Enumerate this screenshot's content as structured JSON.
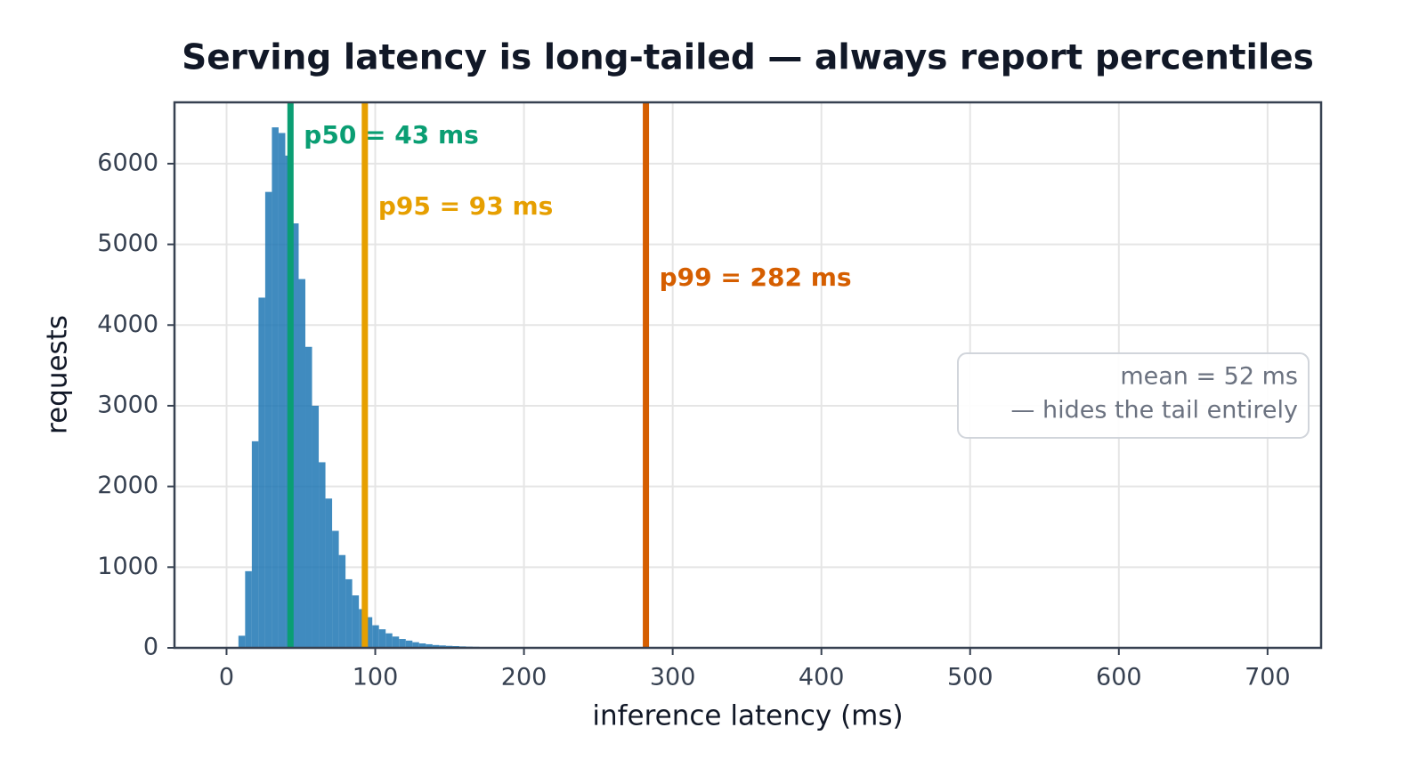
{
  "chart_data": {
    "type": "histogram",
    "title": "Serving latency is long-tailed — always report percentiles",
    "xlabel": "inference latency (ms)",
    "ylabel": "requests",
    "bins": [
      8,
      12.5,
      17,
      21.5,
      26,
      30.5,
      35,
      39.5,
      44,
      48.5,
      53,
      57.5,
      62,
      66.5,
      71,
      75.5,
      80,
      84.5,
      89,
      93.5,
      98,
      102.5,
      107,
      111.5,
      116,
      120.5,
      125,
      129.5,
      134,
      138.5,
      143,
      147.5,
      152,
      156.5,
      161,
      165.5,
      170,
      174.5,
      179,
      183.5,
      188,
      192.5,
      197,
      201.5,
      206,
      210.5,
      215,
      219.5,
      224,
      228.5,
      233,
      237.5,
      242,
      246.5,
      251
    ],
    "values": [
      150,
      950,
      2560,
      4340,
      5650,
      6450,
      6380,
      6100,
      5260,
      4570,
      3730,
      3000,
      2300,
      1850,
      1450,
      1150,
      850,
      650,
      480,
      380,
      280,
      230,
      180,
      140,
      110,
      90,
      70,
      55,
      45,
      35,
      30,
      25,
      22,
      18,
      15,
      13,
      11,
      10,
      9,
      8,
      7,
      6,
      6,
      5,
      5,
      4,
      4,
      3,
      3,
      3,
      2,
      2,
      2,
      2
    ],
    "color": "#1f77b4",
    "xlim": [
      -35,
      736
    ],
    "xticks": [
      0,
      100,
      200,
      300,
      400,
      500,
      600,
      700
    ],
    "ylim": [
      0,
      6760
    ],
    "yticks": [
      0,
      1000,
      2000,
      3000,
      4000,
      5000,
      6000
    ],
    "grid": true,
    "markers": [
      {
        "label": "p50 = 43 ms",
        "value": 43,
        "color": "#0a9e73"
      },
      {
        "label": "p95 = 93 ms",
        "value": 93,
        "color": "#e69f00"
      },
      {
        "label": "p99 = 282 ms",
        "value": 282,
        "color": "#d55e00"
      }
    ],
    "annotation": [
      "mean = 52 ms",
      "— hides the tail entirely"
    ]
  }
}
